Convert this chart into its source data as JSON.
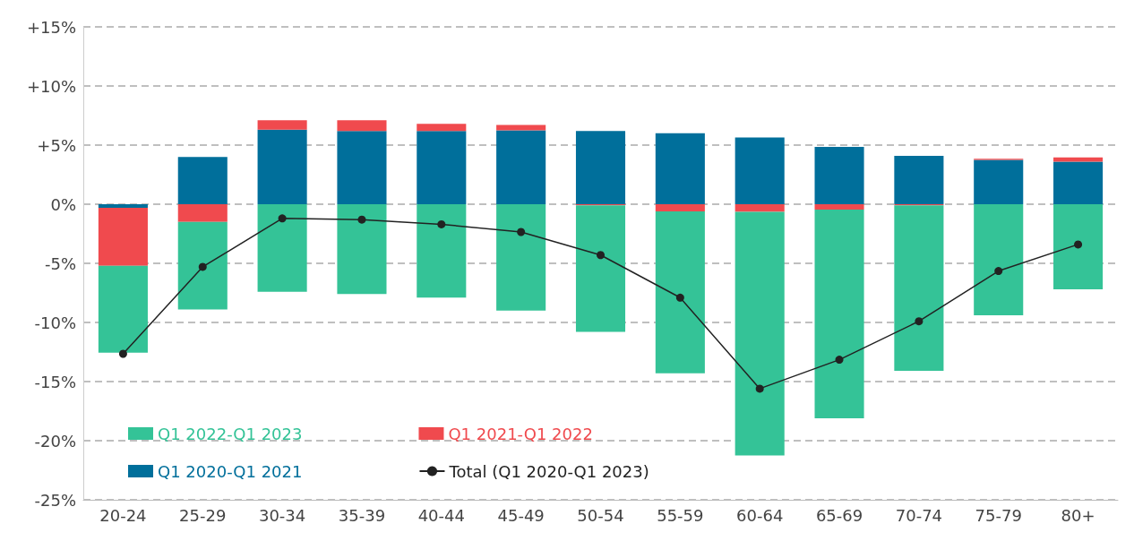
{
  "chart_data": {
    "type": "bar",
    "stacked": true,
    "categories": [
      "20-24",
      "25-29",
      "30-34",
      "35-39",
      "40-44",
      "45-49",
      "50-54",
      "55-59",
      "60-64",
      "65-69",
      "70-74",
      "75-79",
      "80+"
    ],
    "series": [
      {
        "name": "Q1 2020-Q1 2021",
        "color": "#006f9b",
        "values": [
          -0.3,
          4.0,
          6.3,
          6.2,
          6.2,
          6.25,
          6.2,
          6.0,
          5.65,
          4.85,
          4.1,
          3.75,
          3.6
        ]
      },
      {
        "name": "Q1 2021-Q1 2022",
        "color": "#f04a4e",
        "values": [
          -4.9,
          -1.5,
          0.8,
          0.9,
          0.6,
          0.45,
          -0.1,
          -0.6,
          -0.65,
          -0.45,
          -0.1,
          0.1,
          0.35
        ]
      },
      {
        "name": "Q1 2022-Q1 2023",
        "color": "#34c397",
        "values": [
          -7.35,
          -7.4,
          -7.4,
          -7.6,
          -7.9,
          -9.0,
          -10.7,
          -13.7,
          -20.6,
          -17.65,
          -14.0,
          -9.4,
          -7.2
        ]
      },
      {
        "name": "Total (Q1 2020-Q1 2023)",
        "type": "line",
        "color": "#222222",
        "values": [
          -12.65,
          -5.3,
          -1.2,
          -1.3,
          -1.7,
          -2.35,
          -4.3,
          -7.9,
          -15.6,
          -13.15,
          -9.9,
          -5.65,
          -3.4
        ]
      }
    ],
    "ylim": [
      -25,
      15
    ],
    "yticks": [
      {
        "value": -25,
        "label": "-25%"
      },
      {
        "value": -20,
        "label": "-20%"
      },
      {
        "value": -15,
        "label": "-15%"
      },
      {
        "value": -10,
        "label": "-10%"
      },
      {
        "value": -5,
        "label": "-5%"
      },
      {
        "value": 0,
        "label": "0%"
      },
      {
        "value": 5,
        "label": "+5%"
      },
      {
        "value": 10,
        "label": "+10%"
      },
      {
        "value": 15,
        "label": "+15%"
      }
    ],
    "grid": "y",
    "legend": "bottom left",
    "marker": "circle"
  }
}
